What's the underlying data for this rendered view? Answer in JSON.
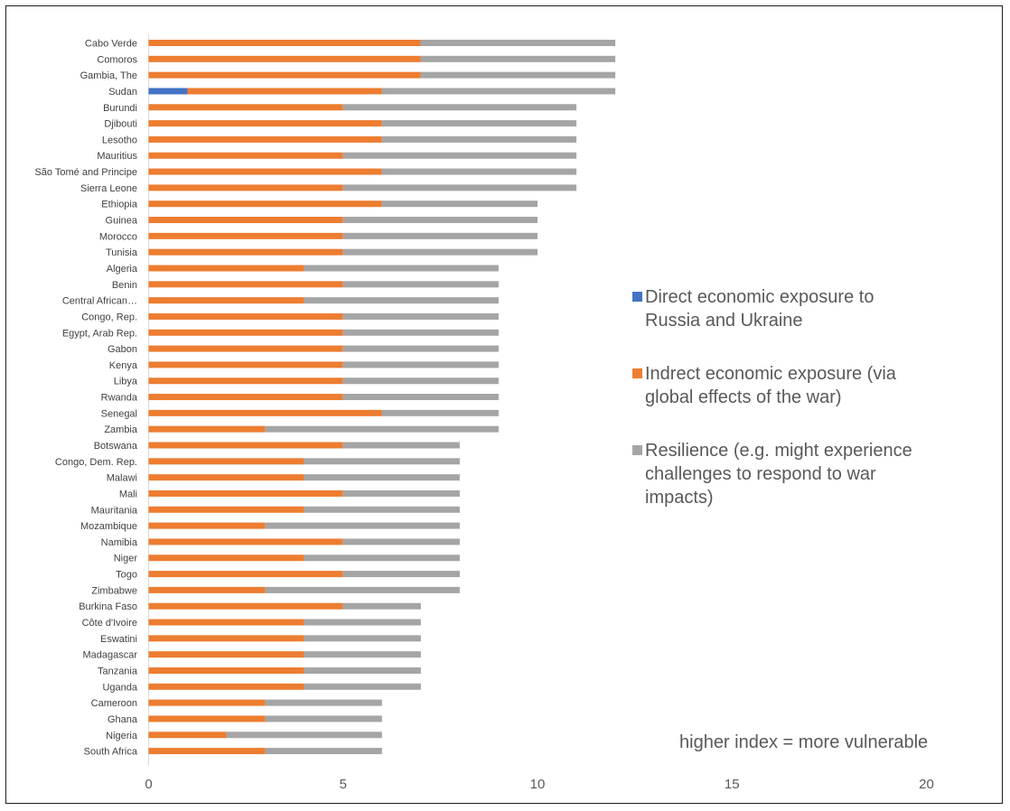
{
  "chart_data": {
    "type": "bar",
    "orientation": "horizontal",
    "stacked": true,
    "categories": [
      "Cabo Verde",
      "Comoros",
      "Gambia, The",
      "Sudan",
      "Burundi",
      "Djibouti",
      "Lesotho",
      "Mauritius",
      "São Tomé and Principe",
      "Sierra Leone",
      "Ethiopia",
      "Guinea",
      "Morocco",
      "Tunisia",
      "Algeria",
      "Benin",
      "Central African…",
      "Congo, Rep.",
      "Egypt, Arab Rep.",
      "Gabon",
      "Kenya",
      "Libya",
      "Rwanda",
      "Senegal",
      "Zambia",
      "Botswana",
      "Congo, Dem. Rep.",
      "Malawi",
      "Mali",
      "Mauritania",
      "Mozambique",
      "Namibia",
      "Niger",
      "Togo",
      "Zimbabwe",
      "Burkina Faso",
      "Côte d'Ivoire",
      "Eswatini",
      "Madagascar",
      "Tanzania",
      "Uganda",
      "Cameroon",
      "Ghana",
      "Nigeria",
      "South Africa"
    ],
    "series": [
      {
        "name": "Direct economic exposure to Russia and Ukraine",
        "color": "#4472c4",
        "values": [
          0,
          0,
          0,
          1,
          0,
          0,
          0,
          0,
          0,
          0,
          0,
          0,
          0,
          0,
          0,
          0,
          0,
          0,
          0,
          0,
          0,
          0,
          0,
          0,
          0,
          0,
          0,
          0,
          0,
          0,
          0,
          0,
          0,
          0,
          0,
          0,
          0,
          0,
          0,
          0,
          0,
          0,
          0,
          0,
          0
        ]
      },
      {
        "name": "Indrect economic exposure (via global effects of the war)",
        "color": "#ed7d31",
        "values": [
          7,
          7,
          7,
          5,
          5,
          6,
          6,
          5,
          6,
          5,
          6,
          5,
          5,
          5,
          4,
          5,
          4,
          5,
          5,
          5,
          5,
          5,
          5,
          6,
          3,
          5,
          4,
          4,
          5,
          4,
          3,
          5,
          4,
          5,
          3,
          5,
          4,
          4,
          4,
          4,
          4,
          3,
          3,
          2,
          3
        ]
      },
      {
        "name": "Resilience (e.g. might experience challenges to respond to war impacts)",
        "color": "#a5a5a5",
        "values": [
          5,
          5,
          5,
          6,
          6,
          5,
          5,
          6,
          5,
          6,
          4,
          5,
          5,
          5,
          5,
          4,
          5,
          4,
          4,
          4,
          4,
          4,
          4,
          3,
          6,
          3,
          4,
          4,
          3,
          4,
          5,
          3,
          4,
          3,
          5,
          2,
          3,
          3,
          3,
          3,
          3,
          3,
          3,
          4,
          3
        ]
      }
    ],
    "xlim": [
      0,
      20
    ],
    "xticks": [
      "0",
      "5",
      "10",
      "15",
      "20"
    ],
    "grid": false,
    "legend_position": "right",
    "annotation": "higher index = more vulnerable"
  },
  "legend": [
    {
      "lines": [
        "Direct economic exposure to",
        "Russia and Ukraine"
      ],
      "color": "#4472c4"
    },
    {
      "lines": [
        "Indrect economic exposure (via",
        "global effects of the war)"
      ],
      "color": "#ed7d31"
    },
    {
      "lines": [
        "Resilience (e.g. might experience",
        "challenges to respond to war",
        "impacts)"
      ],
      "color": "#a5a5a5"
    }
  ]
}
